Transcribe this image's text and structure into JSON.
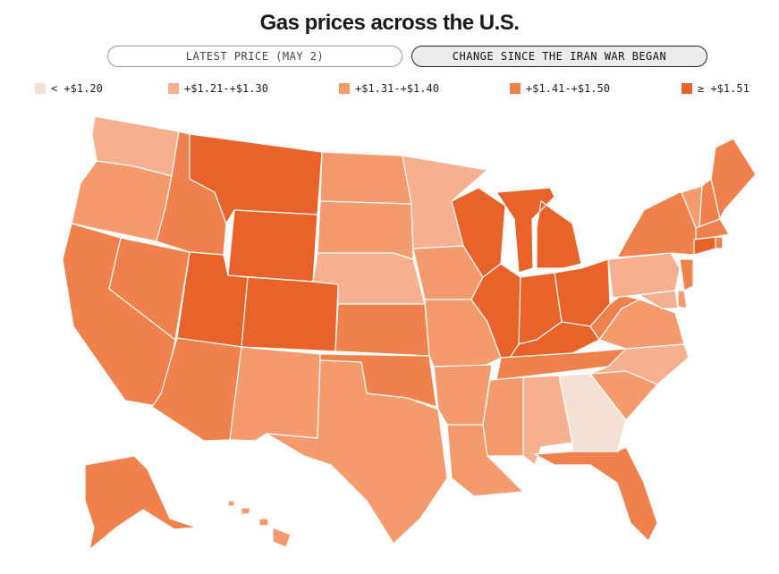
{
  "title": "Gas prices across the U.S.",
  "toggles": [
    {
      "label": "LATEST PRICE (MAY 2)",
      "active": false
    },
    {
      "label": "CHANGE SINCE THE IRAN WAR BEGAN",
      "active": true
    }
  ],
  "legend": [
    {
      "label": "< +$1.20",
      "color": "#f5e0d4"
    },
    {
      "label": "+$1.21-+$1.30",
      "color": "#f7b08f"
    },
    {
      "label": "+$1.31-+$1.40",
      "color": "#f59a6c"
    },
    {
      "label": "+$1.41-+$1.50",
      "color": "#f0814d"
    },
    {
      "label": "≥ +$1.51",
      "color": "#e8622a"
    }
  ],
  "map_data": {
    "WA": 1,
    "OR": 2,
    "CA": 3,
    "NV": 3,
    "ID": 3,
    "MT": 4,
    "WY": 4,
    "UT": 4,
    "CO": 4,
    "AZ": 3,
    "NM": 2,
    "ND": 2,
    "SD": 2,
    "NE": 1,
    "KS": 3,
    "OK": 3,
    "TX": 2,
    "MN": 1,
    "IA": 2,
    "MO": 2,
    "AR": 2,
    "LA": 2,
    "WI": 4,
    "IL": 4,
    "MI": 4,
    "IN": 4,
    "OH": 4,
    "KY": 4,
    "TN": 3,
    "MS": 2,
    "AL": 1,
    "GA": 0,
    "FL": 3,
    "SC": 2,
    "NC": 1,
    "VA": 2,
    "WV": 3,
    "PA": 1,
    "NY": 3,
    "VT": 2,
    "NH": 3,
    "ME": 3,
    "MA": 3,
    "CT": 4,
    "RI": 3,
    "NJ": 3,
    "DE": 2,
    "MD": 1,
    "AK": 3,
    "HI": 2
  }
}
